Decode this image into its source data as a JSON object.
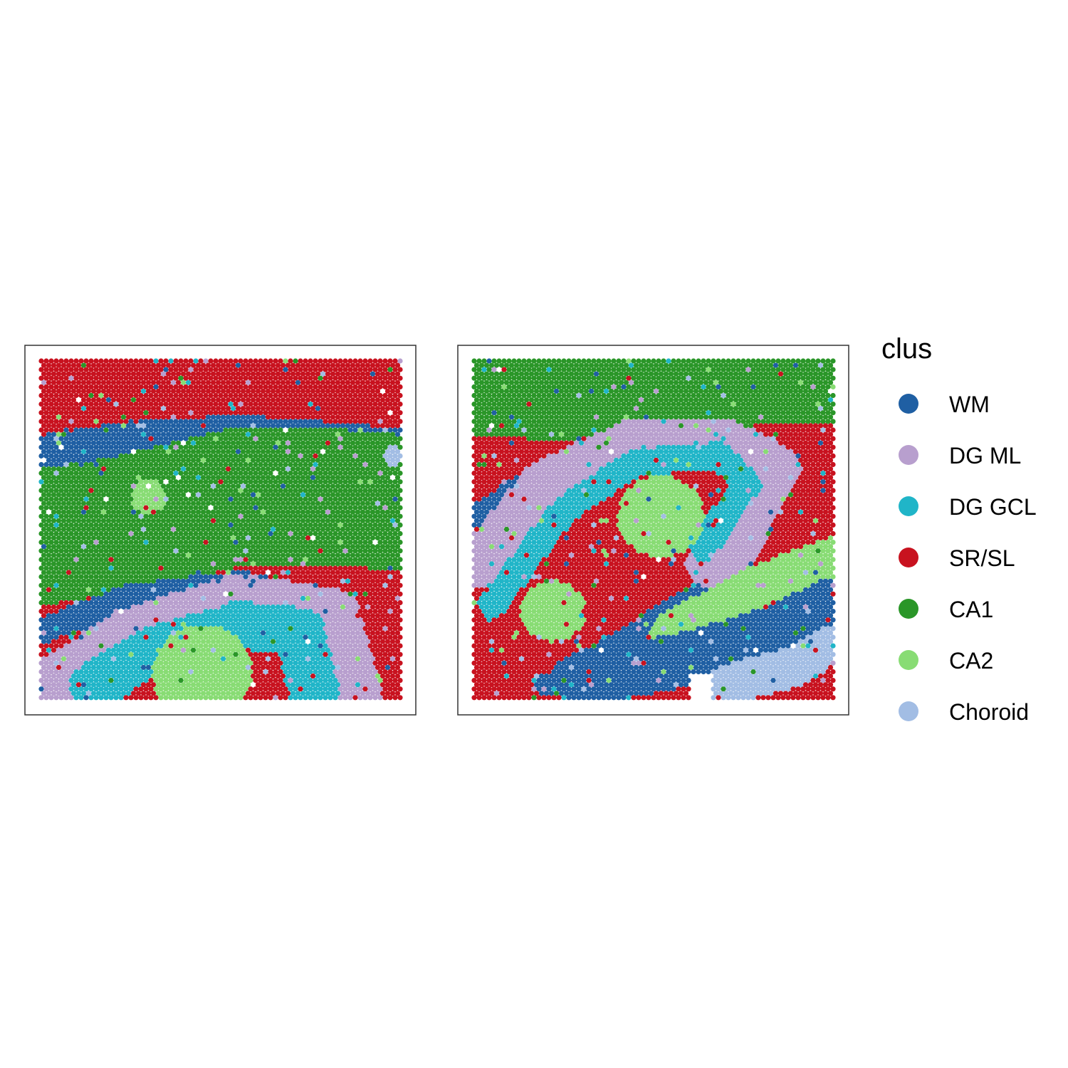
{
  "chart_data": [
    {
      "type": "scatter",
      "title": "",
      "xlabel": "",
      "ylabel": "",
      "grid": false,
      "description_of_layout": "",
      "spatial_regions": [
        {
          "cluster": "WM",
          "shape": "band",
          "path": [
            [
              0.0,
              0.3
            ],
            [
              0.25,
              0.26
            ],
            [
              0.55,
              0.24
            ],
            [
              0.8,
              0.26
            ],
            [
              1.0,
              0.28
            ]
          ],
          "width": 0.08
        },
        {
          "cluster": "CA1",
          "shape": "band",
          "path": [
            [
              0.0,
              0.52
            ],
            [
              0.25,
              0.48
            ],
            [
              0.55,
              0.4
            ],
            [
              0.8,
              0.4
            ],
            [
              1.0,
              0.42
            ]
          ],
          "width": 0.2
        },
        {
          "cluster": "CA2",
          "shape": "blob",
          "center": [
            0.3,
            0.4
          ],
          "radius": 0.05
        },
        {
          "cluster": "WM",
          "shape": "band",
          "path": [
            [
              0.0,
              0.8
            ],
            [
              0.25,
              0.7
            ],
            [
              0.55,
              0.66
            ],
            [
              0.8,
              0.72
            ],
            [
              0.9,
              0.95
            ]
          ],
          "width": 0.04
        },
        {
          "cluster": "DG ML",
          "shape": "band",
          "path": [
            [
              0.05,
              0.96
            ],
            [
              0.25,
              0.82
            ],
            [
              0.55,
              0.72
            ],
            [
              0.8,
              0.76
            ],
            [
              0.86,
              0.98
            ]
          ],
          "width": 0.09
        },
        {
          "cluster": "DG GCL",
          "shape": "band",
          "path": [
            [
              0.15,
              0.96
            ],
            [
              0.3,
              0.86
            ],
            [
              0.55,
              0.78
            ],
            [
              0.72,
              0.8
            ],
            [
              0.76,
              0.98
            ]
          ],
          "width": 0.07
        },
        {
          "cluster": "CA2",
          "shape": "blob",
          "center": [
            0.45,
            0.92
          ],
          "radius": 0.14
        },
        {
          "cluster": "Choroid",
          "shape": "blob",
          "center": [
            0.98,
            0.28
          ],
          "radius": 0.03
        }
      ]
    },
    {
      "type": "scatter",
      "title": "",
      "xlabel": "",
      "ylabel": "",
      "grid": false,
      "spatial_regions": [
        {
          "cluster": "CA1",
          "shape": "band",
          "path": [
            [
              0.0,
              0.06
            ],
            [
              0.3,
              0.08
            ],
            [
              0.6,
              0.04
            ],
            [
              1.0,
              0.02
            ]
          ],
          "width": 0.16
        },
        {
          "cluster": "WM",
          "shape": "band",
          "path": [
            [
              0.0,
              0.46
            ],
            [
              0.2,
              0.32
            ],
            [
              0.45,
              0.2
            ],
            [
              0.7,
              0.2
            ],
            [
              0.88,
              0.3
            ],
            [
              0.75,
              0.6
            ],
            [
              0.45,
              0.8
            ],
            [
              0.2,
              0.96
            ]
          ],
          "width": 0.03
        },
        {
          "cluster": "DG ML",
          "shape": "band",
          "path": [
            [
              0.02,
              0.6
            ],
            [
              0.2,
              0.36
            ],
            [
              0.45,
              0.24
            ],
            [
              0.7,
              0.24
            ],
            [
              0.84,
              0.32
            ],
            [
              0.72,
              0.55
            ],
            [
              0.66,
              0.6
            ]
          ],
          "width": 0.07
        },
        {
          "cluster": "DG GCL",
          "shape": "band",
          "path": [
            [
              0.05,
              0.72
            ],
            [
              0.25,
              0.44
            ],
            [
              0.45,
              0.3
            ],
            [
              0.68,
              0.28
            ],
            [
              0.76,
              0.36
            ],
            [
              0.64,
              0.55
            ]
          ],
          "width": 0.04
        },
        {
          "cluster": "CA2",
          "shape": "blob",
          "center": [
            0.52,
            0.46
          ],
          "radius": 0.12
        },
        {
          "cluster": "CA2",
          "shape": "blob",
          "center": [
            0.22,
            0.74
          ],
          "radius": 0.09
        },
        {
          "cluster": "CA2",
          "shape": "band",
          "path": [
            [
              0.55,
              0.8
            ],
            [
              0.8,
              0.66
            ],
            [
              1.0,
              0.58
            ]
          ],
          "width": 0.06
        },
        {
          "cluster": "WM",
          "shape": "band",
          "path": [
            [
              0.3,
              0.94
            ],
            [
              0.6,
              0.88
            ],
            [
              0.85,
              0.8
            ],
            [
              1.0,
              0.72
            ]
          ],
          "width": 0.08
        },
        {
          "cluster": "Choroid",
          "shape": "band",
          "path": [
            [
              0.7,
              0.96
            ],
            [
              0.9,
              0.9
            ],
            [
              1.0,
              0.84
            ]
          ],
          "width": 0.06
        }
      ]
    }
  ],
  "legend": {
    "title": "clus",
    "placement": "right",
    "items": [
      {
        "label": "WM",
        "color": "#1f5fa3"
      },
      {
        "label": "DG ML",
        "color": "#b89fce"
      },
      {
        "label": "DG GCL",
        "color": "#20b5c8"
      },
      {
        "label": "SR/SL",
        "color": "#c8121f"
      },
      {
        "label": "CA1",
        "color": "#2a9628"
      },
      {
        "label": "CA2",
        "color": "#88dc74"
      },
      {
        "label": "Choroid",
        "color": "#a2bde4"
      }
    ]
  }
}
